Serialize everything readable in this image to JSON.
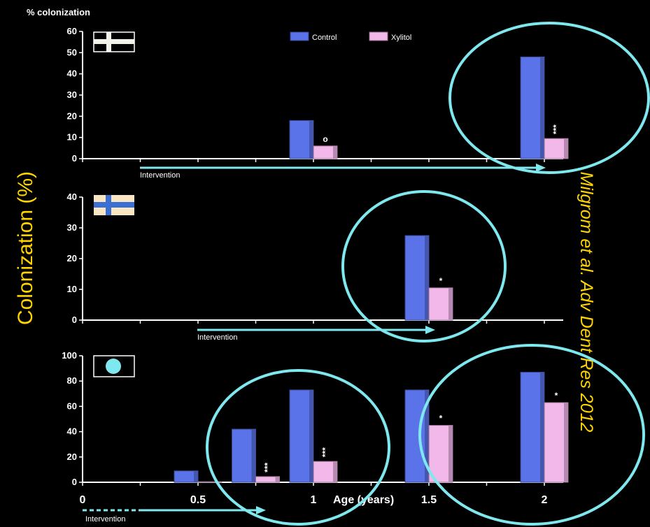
{
  "figure": {
    "top_label": "% colonization",
    "side_title": "Colonization (%)",
    "citation": "Milgrom et al. Adv Dent Res 2012",
    "x_axis_title": "Age (years)",
    "x_tick_labels": [
      "0",
      "0.5",
      "1",
      "1.5",
      "2"
    ],
    "intervention_label": "Intervention"
  },
  "legend": [
    {
      "name": "Control",
      "color": "#5a73e8"
    },
    {
      "name": "Xylitol",
      "color": "#f2b8ea"
    }
  ],
  "colors": {
    "control": "#5a73e8",
    "xylitol": "#f2b8ea",
    "highlight": "#7fe8ee",
    "citation": "#ffd400"
  },
  "chart_data": [
    {
      "type": "bar",
      "panel": "top",
      "flag": "black-white-cross",
      "ylim": [
        0,
        60
      ],
      "yticks": [
        0,
        10,
        20,
        30,
        40,
        50,
        60
      ],
      "series": [
        {
          "name": "Control",
          "points": [
            {
              "x": 1,
              "y": 18
            },
            {
              "x": 2,
              "y": 48
            }
          ]
        },
        {
          "name": "Xylitol",
          "points": [
            {
              "x": 1,
              "y": 6,
              "mark": "o"
            },
            {
              "x": 2,
              "y": 9.5,
              "mark": "***"
            }
          ]
        }
      ]
    },
    {
      "type": "bar",
      "panel": "middle",
      "flag": "blue-cream-cross",
      "ylim": [
        0,
        40
      ],
      "yticks": [
        0,
        10,
        20,
        30,
        40
      ],
      "series": [
        {
          "name": "Control",
          "points": [
            {
              "x": 1.5,
              "y": 27.5
            }
          ]
        },
        {
          "name": "Xylitol",
          "points": [
            {
              "x": 1.5,
              "y": 10.5,
              "mark": "*"
            }
          ]
        }
      ]
    },
    {
      "type": "bar",
      "panel": "bottom",
      "flag": "cyan-circle",
      "ylim": [
        0,
        100
      ],
      "yticks": [
        0,
        20,
        40,
        60,
        80,
        100
      ],
      "series": [
        {
          "name": "Control",
          "points": [
            {
              "x": 0.5,
              "y": 9
            },
            {
              "x": 0.75,
              "y": 42
            },
            {
              "x": 1,
              "y": 73
            },
            {
              "x": 1.5,
              "y": 73
            },
            {
              "x": 2,
              "y": 87
            }
          ]
        },
        {
          "name": "Xylitol",
          "points": [
            {
              "x": 0.5,
              "y": 0.5
            },
            {
              "x": 0.75,
              "y": 4.5,
              "mark": "***"
            },
            {
              "x": 1,
              "y": 16.5,
              "mark": "***"
            },
            {
              "x": 1.5,
              "y": 45,
              "mark": "*"
            },
            {
              "x": 2,
              "y": 63,
              "mark": "*"
            }
          ]
        }
      ]
    }
  ]
}
